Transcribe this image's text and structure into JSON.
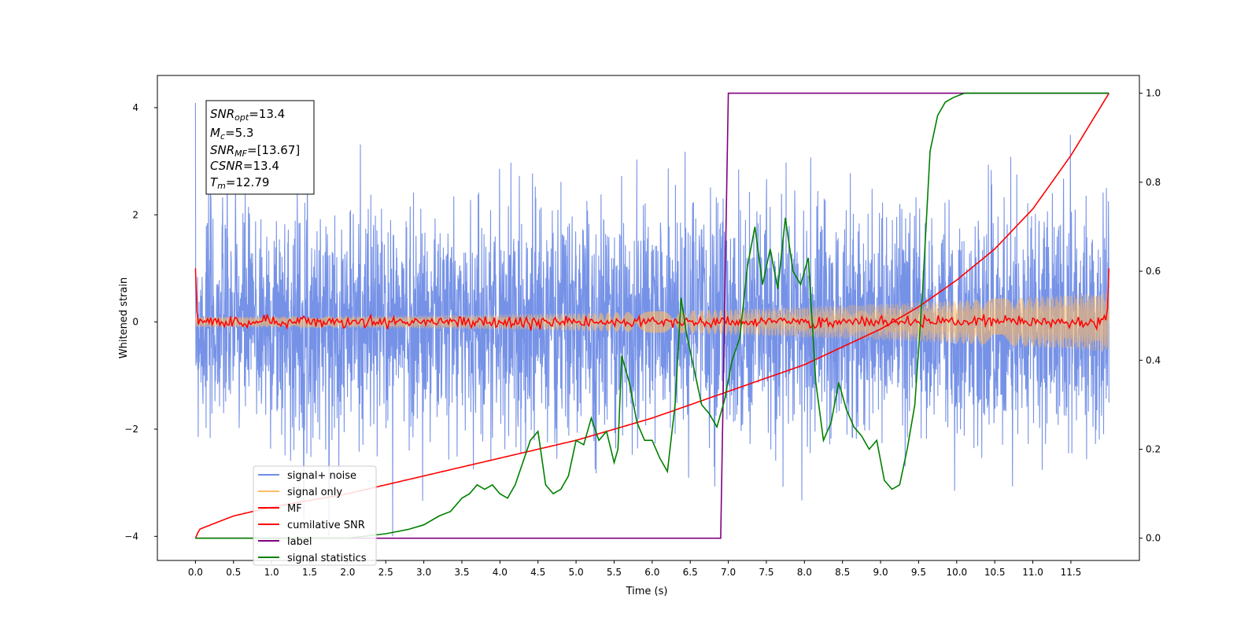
{
  "chart_data": {
    "type": "line",
    "xlabel": "Time (s)",
    "ylabel": "Whitened strain",
    "xlim": [
      -0.5,
      12.4
    ],
    "ylim": [
      -4.45,
      4.6
    ],
    "y2lim": [
      -0.05,
      1.04
    ],
    "x_ticks": [
      "0.0",
      "0.5",
      "1.0",
      "1.5",
      "2.0",
      "2.5",
      "3.0",
      "3.5",
      "4.0",
      "4.5",
      "5.0",
      "5.5",
      "6.0",
      "6.5",
      "7.0",
      "7.5",
      "8.0",
      "8.5",
      "9.0",
      "9.5",
      "10.0",
      "10.5",
      "11.0",
      "11.5"
    ],
    "y_ticks": [
      "4",
      "2",
      "0",
      "−2",
      "−4"
    ],
    "y2_ticks": [
      "1.0",
      "0.8",
      "0.6",
      "0.4",
      "0.2",
      "0.0"
    ],
    "legend_position": "lower-left",
    "annotation": {
      "line1": {
        "base": "SNR",
        "sub": "opt",
        "value": "=13.4"
      },
      "line2": {
        "base": "M",
        "sub": "c",
        "value": "=5.3"
      },
      "line3": {
        "base": "SNR",
        "sub": "MF",
        "value": "=[13.67]"
      },
      "line4": {
        "base": "CSNR",
        "sub": "",
        "value": "=13.4"
      },
      "line5": {
        "base": "T",
        "sub": "m",
        "value": "=12.79"
      }
    },
    "series": [
      {
        "name": "signal+ noise",
        "color": "#6f8ce6",
        "axis": "left",
        "envelope_sigma": 1.0,
        "x_range": [
          0,
          12.0
        ]
      },
      {
        "name": "signal only",
        "color": "#ffbb66",
        "axis": "left",
        "amplitude_start": 0.1,
        "amplitude_end": 0.55
      },
      {
        "name": "MF",
        "color": "#ff0000",
        "axis": "left",
        "start_value": 1.0,
        "end_value": 1.0,
        "noise_level": 0.05
      },
      {
        "name": "cumilative SNR",
        "color": "#ff0000",
        "axis": "right",
        "x": [
          0,
          0.05,
          0.5,
          1.0,
          2.0,
          3.0,
          4.0,
          5.0,
          6.0,
          7.0,
          8.0,
          8.5,
          9.0,
          9.5,
          10.0,
          10.5,
          11.0,
          11.5,
          12.0
        ],
        "y": [
          0.0,
          0.02,
          0.05,
          0.07,
          0.1,
          0.14,
          0.18,
          0.22,
          0.27,
          0.33,
          0.39,
          0.43,
          0.47,
          0.52,
          0.58,
          0.65,
          0.74,
          0.86,
          1.0
        ]
      },
      {
        "name": "label",
        "color": "#800080",
        "axis": "right",
        "x": [
          0,
          6.9,
          7.0,
          12.0
        ],
        "y": [
          0,
          0,
          1,
          1
        ]
      },
      {
        "name": "signal statistics",
        "color": "#008000",
        "axis": "right",
        "x": [
          0,
          1.0,
          2.0,
          2.5,
          2.8,
          3.0,
          3.2,
          3.35,
          3.5,
          3.6,
          3.7,
          3.8,
          3.9,
          4.0,
          4.1,
          4.2,
          4.3,
          4.4,
          4.5,
          4.6,
          4.7,
          4.8,
          4.9,
          5.0,
          5.1,
          5.2,
          5.3,
          5.4,
          5.5,
          5.55,
          5.6,
          5.7,
          5.8,
          5.9,
          6.0,
          6.1,
          6.2,
          6.3,
          6.38,
          6.45,
          6.55,
          6.65,
          6.75,
          6.85,
          6.95,
          7.05,
          7.15,
          7.25,
          7.35,
          7.45,
          7.55,
          7.65,
          7.75,
          7.85,
          7.95,
          8.05,
          8.15,
          8.25,
          8.35,
          8.45,
          8.55,
          8.65,
          8.75,
          8.85,
          8.95,
          9.05,
          9.15,
          9.25,
          9.35,
          9.45,
          9.55,
          9.65,
          9.75,
          9.85,
          9.95,
          10.1,
          10.3,
          10.5,
          10.7,
          11.0,
          11.5,
          12.0
        ],
        "y": [
          0.0,
          0.0,
          0.0,
          0.01,
          0.02,
          0.03,
          0.05,
          0.06,
          0.09,
          0.1,
          0.12,
          0.11,
          0.12,
          0.1,
          0.09,
          0.12,
          0.17,
          0.22,
          0.24,
          0.12,
          0.1,
          0.11,
          0.14,
          0.22,
          0.21,
          0.27,
          0.22,
          0.24,
          0.17,
          0.2,
          0.41,
          0.35,
          0.26,
          0.22,
          0.22,
          0.18,
          0.15,
          0.3,
          0.54,
          0.46,
          0.38,
          0.3,
          0.28,
          0.25,
          0.31,
          0.4,
          0.45,
          0.61,
          0.7,
          0.57,
          0.65,
          0.56,
          0.72,
          0.6,
          0.57,
          0.63,
          0.35,
          0.22,
          0.26,
          0.35,
          0.29,
          0.25,
          0.23,
          0.2,
          0.22,
          0.13,
          0.11,
          0.12,
          0.2,
          0.3,
          0.55,
          0.87,
          0.95,
          0.98,
          0.99,
          1.0,
          1.0,
          1.0,
          1.0,
          1.0,
          1.0,
          1.0
        ]
      }
    ]
  }
}
